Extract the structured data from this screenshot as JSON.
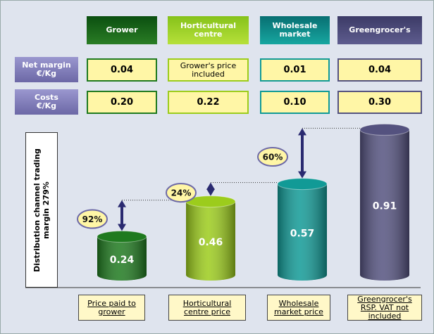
{
  "header": {
    "columns": [
      "Grower",
      "Horticultural centre",
      "Wholesale market",
      "Greengrocer's"
    ]
  },
  "table": {
    "rows": [
      {
        "label": [
          "Net margin",
          "€/Kg"
        ],
        "cells": [
          "0.04",
          "Grower's price included",
          "0.01",
          "0.04"
        ]
      },
      {
        "label": [
          "Costs",
          "€/Kg"
        ],
        "cells": [
          "0.20",
          "0.22",
          "0.10",
          "0.30"
        ]
      }
    ]
  },
  "chart_data": {
    "type": "bar",
    "axis_label": "Distribution channel trading margin 279%",
    "categories": [
      "Price paid to grower",
      "Horticultural centre price",
      "Wholesale market price",
      "Greengrocer's RSP. VAT not included"
    ],
    "values": [
      0.24,
      0.46,
      0.57,
      0.91
    ],
    "colors": [
      "#1f7a1f",
      "#9ccc1c",
      "#119a96",
      "#54527f"
    ],
    "margins": {
      "values": [
        92,
        24,
        60
      ],
      "value_labels": [
        "92%",
        "24%",
        "60%"
      ]
    }
  }
}
